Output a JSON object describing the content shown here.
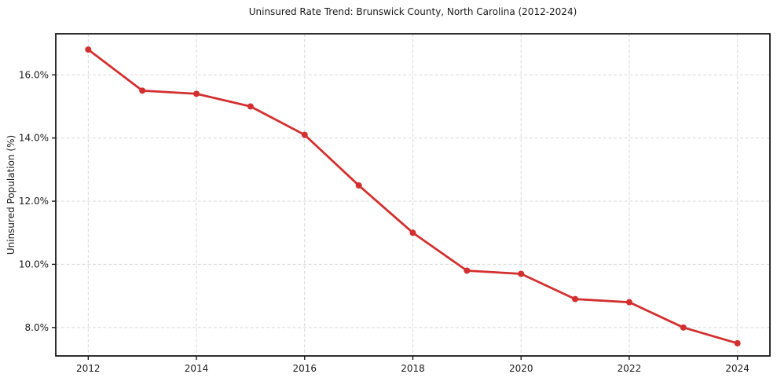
{
  "figure": {
    "background": "#ffffff"
  },
  "chart_data": {
    "type": "line",
    "title": "Uninsured Rate Trend: Brunswick County, North Carolina (2012-2024)",
    "xlabel": "",
    "ylabel": "Uninsured Population (%)",
    "x": [
      2012,
      2013,
      2014,
      2015,
      2016,
      2017,
      2018,
      2019,
      2020,
      2021,
      2022,
      2023,
      2024
    ],
    "values": [
      16.8,
      15.5,
      15.4,
      15.0,
      14.1,
      12.5,
      11.0,
      9.8,
      9.7,
      8.9,
      8.8,
      8.0,
      7.5
    ],
    "xticks": [
      2012,
      2014,
      2016,
      2018,
      2020,
      2022,
      2024
    ],
    "xtick_labels": [
      "2012",
      "2014",
      "2016",
      "2018",
      "2020",
      "2022",
      "2024"
    ],
    "yticks": [
      8,
      10,
      12,
      14,
      16
    ],
    "ytick_labels": [
      "8.0%",
      "10.0%",
      "12.0%",
      "14.0%",
      "16.0%"
    ],
    "xlim": [
      2011.4,
      2024.6
    ],
    "ylim": [
      7.1,
      17.3
    ],
    "grid": true,
    "grid_style": "dashed",
    "legend": false,
    "marker": "circle",
    "line_color": "#d32f2f",
    "grid_color": "#d8d8d8",
    "axis_color": "#1a1a1a",
    "text_color": "#1a1a1a"
  }
}
